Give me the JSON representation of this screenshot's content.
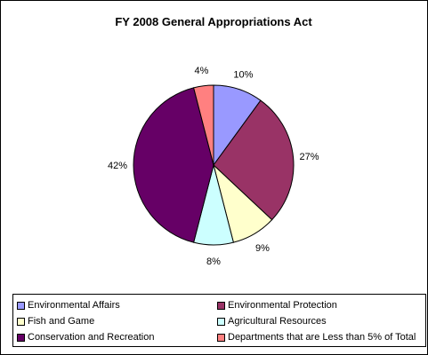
{
  "chart_data": {
    "type": "pie",
    "title": "FY 2008 General Appropriations Act",
    "slices": [
      {
        "label": "Environmental Affairs",
        "value": 10,
        "display": "10%",
        "color": "#9999ff"
      },
      {
        "label": "Environmental Protection",
        "value": 27,
        "display": "27%",
        "color": "#993366"
      },
      {
        "label": "Fish and Game",
        "value": 9,
        "display": "9%",
        "color": "#ffffcc"
      },
      {
        "label": "Agricultural Resources",
        "value": 8,
        "display": "8%",
        "color": "#ccffff"
      },
      {
        "label": "Conservation and Recreation",
        "value": 42,
        "display": "42%",
        "color": "#660066"
      },
      {
        "label": "Departments that are Less than 5% of Total",
        "value": 4,
        "display": "4%",
        "color": "#ff8080"
      }
    ],
    "start_angle": "12 o'clock",
    "direction": "clockwise",
    "legend_position": "bottom"
  }
}
